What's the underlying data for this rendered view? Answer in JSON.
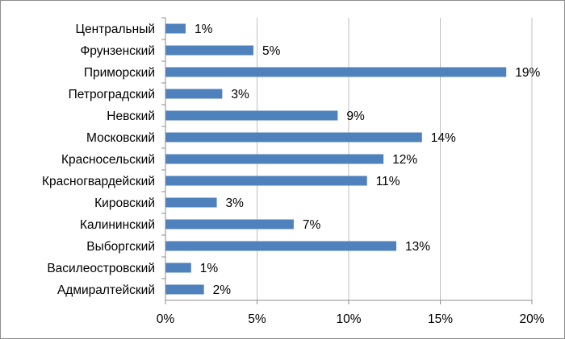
{
  "chart_data": {
    "type": "bar",
    "orientation": "horizontal",
    "categories": [
      "Центральный",
      "Фрунзенский",
      "Приморский",
      "Петроградский",
      "Невский",
      "Московский",
      "Красносельский",
      "Красногвардейский",
      "Кировский",
      "Калининский",
      "Выборгский",
      "Василеостровский",
      "Адмиралтейский"
    ],
    "values": [
      1.1,
      4.8,
      18.6,
      3.1,
      9.4,
      14.0,
      11.9,
      11.0,
      2.8,
      7.0,
      12.6,
      1.4,
      2.1
    ],
    "data_labels": [
      "1%",
      "5%",
      "19%",
      "3%",
      "9%",
      "14%",
      "12%",
      "11%",
      "3%",
      "7%",
      "13%",
      "1%",
      "2%"
    ],
    "x_ticks": [
      "0%",
      "5%",
      "10%",
      "15%",
      "20%"
    ],
    "xlim": [
      0,
      20
    ],
    "grid": "vertical",
    "bar_color": "#4f81bd",
    "title": "",
    "xlabel": "",
    "ylabel": ""
  }
}
